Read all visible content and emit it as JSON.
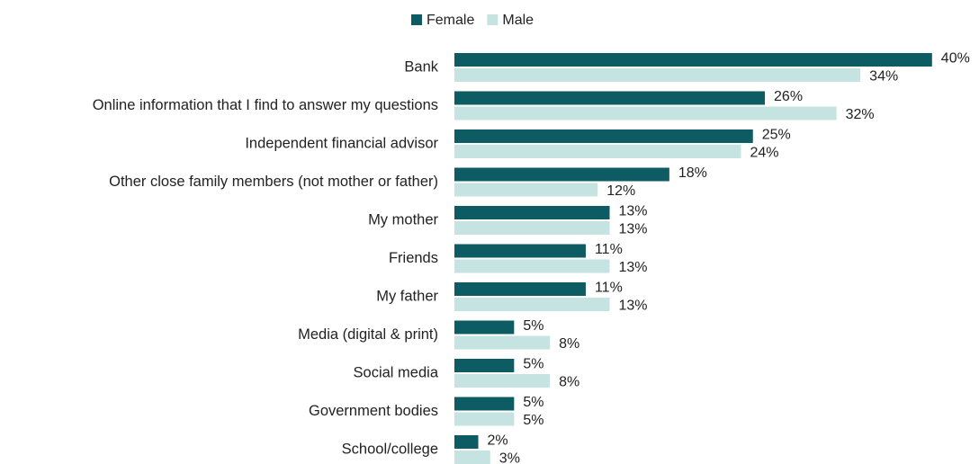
{
  "chart_data": {
    "type": "bar",
    "orientation": "horizontal",
    "categories": [
      "Bank",
      "Online information that I find to answer my questions",
      "Independent financial advisor",
      "Other close family members (not mother or father)",
      "My mother",
      "Friends",
      "My father",
      "Media (digital & print)",
      "Social media",
      "Government bodies",
      "School/college"
    ],
    "series": [
      {
        "name": "Female",
        "color": "#0d5c63",
        "values": [
          40,
          26,
          25,
          18,
          13,
          11,
          11,
          5,
          5,
          5,
          2
        ],
        "value_labels": [
          "40%",
          "26%",
          "25%",
          "18%",
          "13%",
          "11%",
          "11%",
          "5%",
          "5%",
          "5%",
          "2%"
        ]
      },
      {
        "name": "Male",
        "color": "#c5e3e0",
        "values": [
          34,
          32,
          24,
          12,
          13,
          13,
          13,
          8,
          8,
          5,
          3
        ],
        "value_labels": [
          "34%",
          "32%",
          "24%",
          "12%",
          "13%",
          "13%",
          "13%",
          "8%",
          "8%",
          "5%",
          "3%"
        ]
      }
    ],
    "legend": "top"
  }
}
